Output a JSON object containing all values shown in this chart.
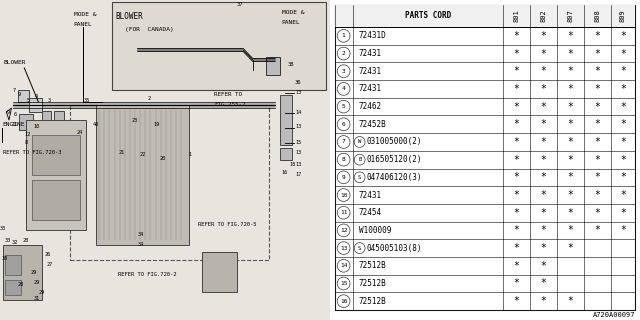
{
  "fig_code": "A720A00097",
  "bg_color": "#e8e5de",
  "table_bg": "#ffffff",
  "col_headers": [
    "801",
    "802",
    "807",
    "808",
    "809"
  ],
  "rows": [
    {
      "num": "1",
      "code": "72431D",
      "prefix": "",
      "marks": [
        1,
        1,
        1,
        1,
        1
      ]
    },
    {
      "num": "2",
      "code": "72431",
      "prefix": "",
      "marks": [
        1,
        1,
        1,
        1,
        1
      ]
    },
    {
      "num": "3",
      "code": "72431",
      "prefix": "",
      "marks": [
        1,
        1,
        1,
        1,
        1
      ]
    },
    {
      "num": "4",
      "code": "72431",
      "prefix": "",
      "marks": [
        1,
        1,
        1,
        1,
        1
      ]
    },
    {
      "num": "5",
      "code": "72462",
      "prefix": "",
      "marks": [
        1,
        1,
        1,
        1,
        1
      ]
    },
    {
      "num": "6",
      "code": "72452B",
      "prefix": "",
      "marks": [
        1,
        1,
        1,
        1,
        1
      ]
    },
    {
      "num": "7",
      "code": "031005000(2)",
      "prefix": "W",
      "marks": [
        1,
        1,
        1,
        1,
        1
      ]
    },
    {
      "num": "8",
      "code": "016505120(2)",
      "prefix": "B",
      "marks": [
        1,
        1,
        1,
        1,
        1
      ]
    },
    {
      "num": "9",
      "code": "047406120(3)",
      "prefix": "S",
      "marks": [
        1,
        1,
        1,
        1,
        1
      ]
    },
    {
      "num": "10",
      "code": "72431",
      "prefix": "",
      "marks": [
        1,
        1,
        1,
        1,
        1
      ]
    },
    {
      "num": "11",
      "code": "72454",
      "prefix": "",
      "marks": [
        1,
        1,
        1,
        1,
        1
      ]
    },
    {
      "num": "12",
      "code": "W100009",
      "prefix": "",
      "marks": [
        1,
        1,
        1,
        1,
        1
      ]
    },
    {
      "num": "13",
      "code": "045005103(8)",
      "prefix": "S",
      "marks": [
        1,
        1,
        1,
        0,
        0
      ]
    },
    {
      "num": "14",
      "code": "72512B",
      "prefix": "",
      "marks": [
        1,
        1,
        0,
        0,
        0
      ]
    },
    {
      "num": "15",
      "code": "72512B",
      "prefix": "",
      "marks": [
        1,
        1,
        0,
        0,
        0
      ]
    },
    {
      "num": "16",
      "code": "72512B",
      "prefix": "",
      "marks": [
        1,
        1,
        1,
        0,
        0
      ]
    }
  ]
}
